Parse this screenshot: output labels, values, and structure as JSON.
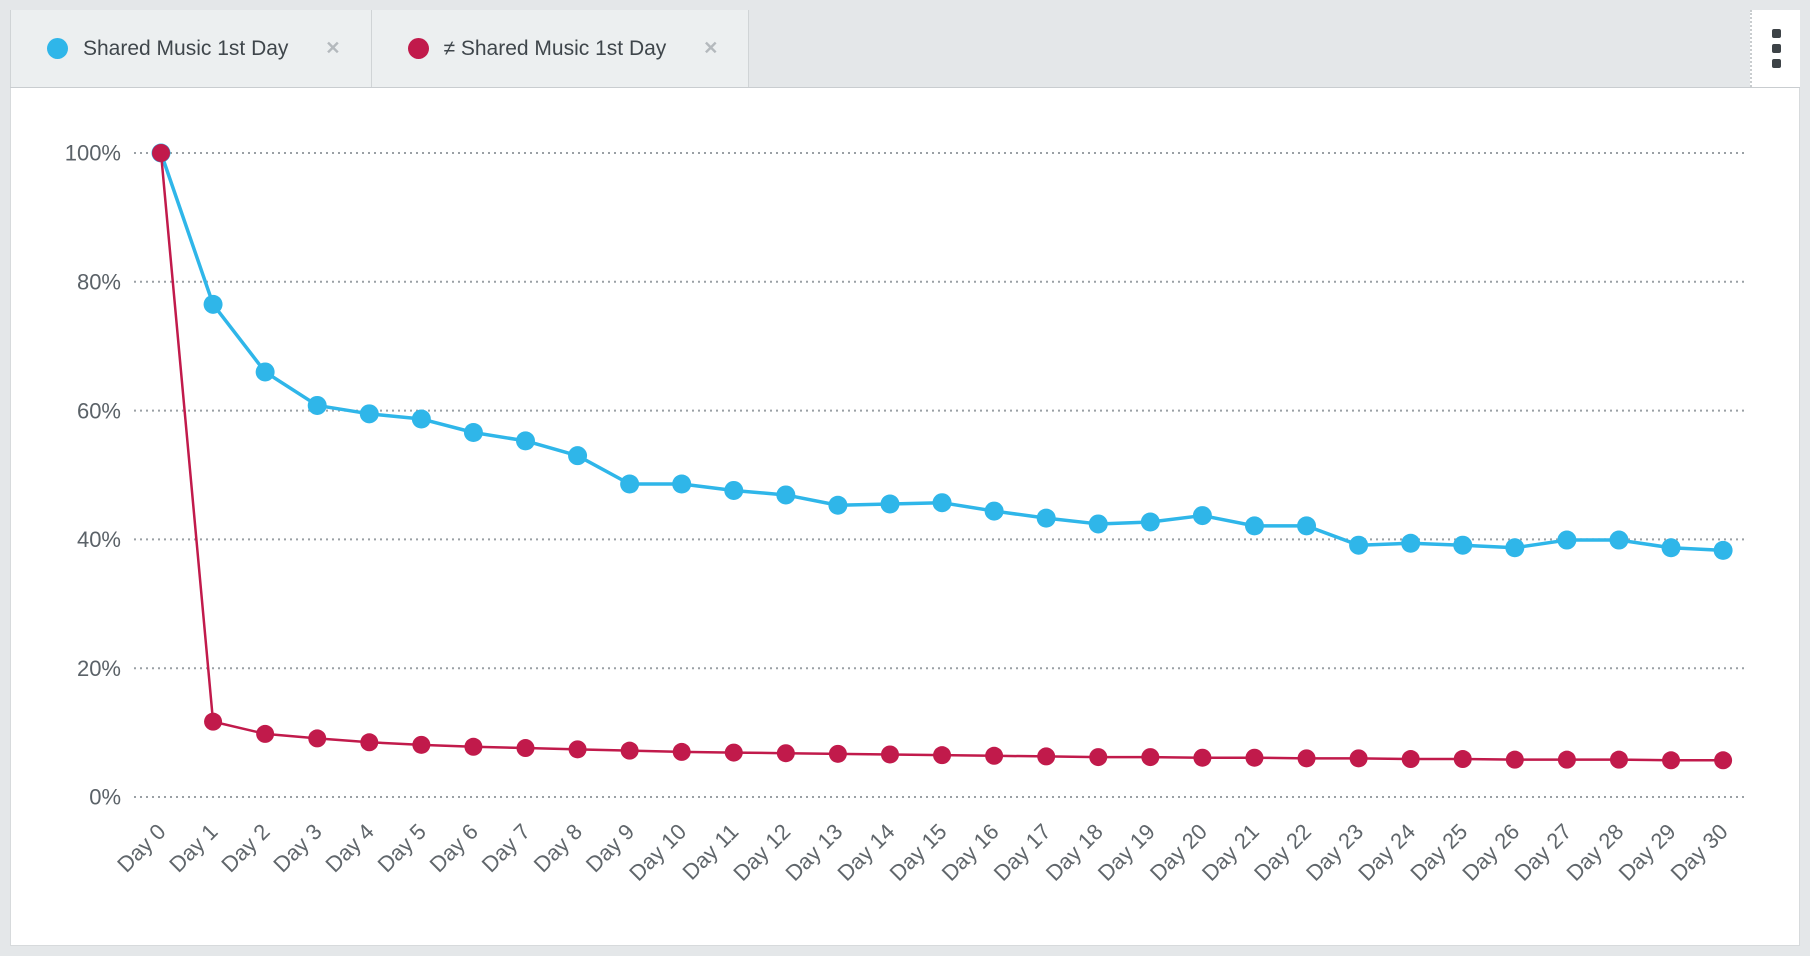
{
  "tabs": [
    {
      "label": "Shared Music 1st Day",
      "color": "#2fb6e9"
    },
    {
      "label": "≠ Shared Music 1st Day",
      "color": "#c11a4b"
    }
  ],
  "icons": {
    "close": "✕",
    "kebab": "⋮"
  },
  "chart_data": {
    "type": "line",
    "title": "",
    "xlabel": "",
    "ylabel": "",
    "x": [
      "Day 0",
      "Day 1",
      "Day 2",
      "Day 3",
      "Day 4",
      "Day 5",
      "Day 6",
      "Day 7",
      "Day 8",
      "Day 9",
      "Day 10",
      "Day 11",
      "Day 12",
      "Day 13",
      "Day 14",
      "Day 15",
      "Day 16",
      "Day 17",
      "Day 18",
      "Day 19",
      "Day 20",
      "Day 21",
      "Day 22",
      "Day 23",
      "Day 24",
      "Day 25",
      "Day 26",
      "Day 27",
      "Day 28",
      "Day 29",
      "Day 30"
    ],
    "series": [
      {
        "name": "Shared Music 1st Day",
        "color": "#2fb6e9",
        "values": [
          100,
          76.5,
          66.0,
          60.8,
          59.5,
          58.7,
          56.6,
          55.3,
          53.0,
          48.6,
          48.6,
          47.6,
          46.9,
          45.3,
          45.5,
          45.7,
          44.4,
          43.3,
          42.4,
          42.7,
          43.7,
          42.1,
          42.1,
          39.1,
          39.4,
          39.1,
          38.7,
          39.9,
          39.9,
          38.7,
          38.3
        ]
      },
      {
        "name": "≠ Shared Music 1st Day",
        "color": "#c11a4b",
        "values": [
          100,
          11.7,
          9.8,
          9.1,
          8.5,
          8.1,
          7.8,
          7.6,
          7.4,
          7.2,
          7.0,
          6.9,
          6.8,
          6.7,
          6.6,
          6.5,
          6.4,
          6.3,
          6.2,
          6.2,
          6.1,
          6.1,
          6.0,
          6.0,
          5.9,
          5.9,
          5.8,
          5.8,
          5.8,
          5.7,
          5.7
        ]
      }
    ],
    "y_axis": {
      "ticks": [
        {
          "label": "0%",
          "value": 0
        },
        {
          "label": "20%",
          "value": 20
        },
        {
          "label": "40%",
          "value": 40
        },
        {
          "label": "60%",
          "value": 60
        },
        {
          "label": "80%",
          "value": 80
        },
        {
          "label": "100%",
          "value": 100
        }
      ]
    },
    "ylim": [
      0,
      100
    ],
    "grid": "horizontal-dotted",
    "legend_position": "top-tabs"
  }
}
